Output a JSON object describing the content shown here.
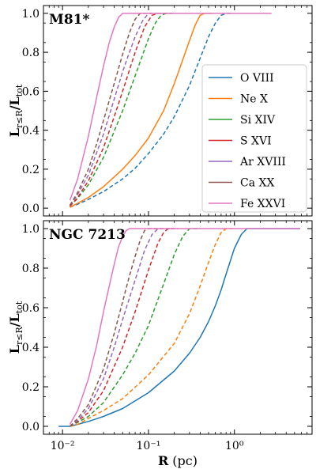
{
  "chart_data": {
    "type": "line",
    "x_scale": "log",
    "xlim": [
      0.006,
      8
    ],
    "ylim": [
      -0.04,
      1.04
    ],
    "x_ticks": [
      {
        "value": 0.01,
        "label": "10⁻²"
      },
      {
        "value": 0.1,
        "label": "10⁻¹"
      },
      {
        "value": 1,
        "label": "10⁰"
      }
    ],
    "y_ticks": [
      {
        "value": 0.0,
        "label": "0.0"
      },
      {
        "value": 0.2,
        "label": "0.2"
      },
      {
        "value": 0.4,
        "label": "0.4"
      },
      {
        "value": 0.6,
        "label": "0.6"
      },
      {
        "value": 0.8,
        "label": "0.8"
      },
      {
        "value": 1.0,
        "label": "1.0"
      }
    ],
    "xlabel": {
      "main": "R",
      "unit": "(pc)"
    },
    "ylabel": {
      "main": "L",
      "sub1": "r≤R",
      "sep": "/L",
      "sub2": "tot"
    },
    "legend": {
      "placement": "center-right",
      "entries": [
        {
          "label": "O VIII",
          "color": "#1f77b4"
        },
        {
          "label": "Ne X",
          "color": "#ff7f0e"
        },
        {
          "label": "Si XIV",
          "color": "#2ca02c"
        },
        {
          "label": "S XVI",
          "color": "#d62728"
        },
        {
          "label": "Ar XVIII",
          "color": "#9467bd"
        },
        {
          "label": "Ca XX",
          "color": "#8c564b"
        },
        {
          "label": "Fe XXVI",
          "color": "#e377c2"
        }
      ]
    },
    "panels": [
      {
        "name": "M81*",
        "series": [
          {
            "color": "#1f77b4",
            "dashed": true,
            "points": [
              [
                0.0122,
                0.005
              ],
              [
                0.015,
                0.02
              ],
              [
                0.02,
                0.045
              ],
              [
                0.03,
                0.085
              ],
              [
                0.05,
                0.15
              ],
              [
                0.07,
                0.205
              ],
              [
                0.1,
                0.28
              ],
              [
                0.15,
                0.38
              ],
              [
                0.2,
                0.47
              ],
              [
                0.3,
                0.63
              ],
              [
                0.4,
                0.77
              ],
              [
                0.5,
                0.88
              ],
              [
                0.6,
                0.95
              ],
              [
                0.7,
                0.99
              ],
              [
                0.8,
                1.0
              ],
              [
                0.95,
                1.0
              ]
            ]
          },
          {
            "color": "#ff7f0e",
            "dashed": false,
            "points": [
              [
                0.0122,
                0.005
              ],
              [
                0.015,
                0.025
              ],
              [
                0.02,
                0.055
              ],
              [
                0.03,
                0.11
              ],
              [
                0.05,
                0.2
              ],
              [
                0.07,
                0.27
              ],
              [
                0.1,
                0.36
              ],
              [
                0.15,
                0.5
              ],
              [
                0.2,
                0.64
              ],
              [
                0.25,
                0.76
              ],
              [
                0.3,
                0.86
              ],
              [
                0.35,
                0.94
              ],
              [
                0.4,
                0.99
              ],
              [
                0.45,
                1.0
              ],
              [
                0.55,
                1.0
              ]
            ]
          },
          {
            "color": "#2ca02c",
            "dashed": true,
            "points": [
              [
                0.0122,
                0.01
              ],
              [
                0.015,
                0.05
              ],
              [
                0.02,
                0.12
              ],
              [
                0.03,
                0.26
              ],
              [
                0.05,
                0.5
              ],
              [
                0.07,
                0.68
              ],
              [
                0.1,
                0.87
              ],
              [
                0.12,
                0.95
              ],
              [
                0.14,
                0.99
              ],
              [
                0.16,
                1.0
              ],
              [
                0.2,
                1.0
              ]
            ]
          },
          {
            "color": "#d62728",
            "dashed": true,
            "points": [
              [
                0.0122,
                0.01
              ],
              [
                0.015,
                0.055
              ],
              [
                0.02,
                0.14
              ],
              [
                0.03,
                0.31
              ],
              [
                0.04,
                0.47
              ],
              [
                0.05,
                0.6
              ],
              [
                0.07,
                0.8
              ],
              [
                0.09,
                0.93
              ],
              [
                0.11,
                0.99
              ],
              [
                0.13,
                1.0
              ],
              [
                0.18,
                1.0
              ]
            ]
          },
          {
            "color": "#9467bd",
            "dashed": true,
            "points": [
              [
                0.0122,
                0.015
              ],
              [
                0.015,
                0.07
              ],
              [
                0.02,
                0.17
              ],
              [
                0.03,
                0.38
              ],
              [
                0.04,
                0.56
              ],
              [
                0.05,
                0.7
              ],
              [
                0.06,
                0.8
              ],
              [
                0.07,
                0.88
              ],
              [
                0.085,
                0.96
              ],
              [
                0.1,
                1.0
              ],
              [
                0.14,
                1.0
              ]
            ]
          },
          {
            "color": "#8c564b",
            "dashed": true,
            "points": [
              [
                0.0122,
                0.015
              ],
              [
                0.015,
                0.08
              ],
              [
                0.02,
                0.2
              ],
              [
                0.025,
                0.33
              ],
              [
                0.03,
                0.45
              ],
              [
                0.04,
                0.64
              ],
              [
                0.05,
                0.79
              ],
              [
                0.06,
                0.9
              ],
              [
                0.07,
                0.97
              ],
              [
                0.08,
                1.0
              ],
              [
                0.11,
                1.0
              ]
            ]
          },
          {
            "color": "#e377c2",
            "dashed": false,
            "points": [
              [
                0.0122,
                0.04
              ],
              [
                0.015,
                0.15
              ],
              [
                0.02,
                0.37
              ],
              [
                0.025,
                0.57
              ],
              [
                0.03,
                0.73
              ],
              [
                0.035,
                0.85
              ],
              [
                0.04,
                0.93
              ],
              [
                0.045,
                0.98
              ],
              [
                0.05,
                1.0
              ],
              [
                0.06,
                1.0
              ],
              [
                0.08,
                1.0
              ],
              [
                0.1,
                1.0
              ],
              [
                0.2,
                1.0
              ],
              [
                0.5,
                1.0
              ],
              [
                1.0,
                1.0
              ],
              [
                2.0,
                1.0
              ],
              [
                2.7,
                1.0
              ]
            ]
          }
        ]
      },
      {
        "name": "NGC 7213",
        "series": [
          {
            "color": "#1f77b4",
            "dashed": false,
            "points": [
              [
                0.009,
                0.0
              ],
              [
                0.0122,
                0.0
              ],
              [
                0.015,
                0.01
              ],
              [
                0.02,
                0.025
              ],
              [
                0.03,
                0.05
              ],
              [
                0.05,
                0.09
              ],
              [
                0.1,
                0.17
              ],
              [
                0.2,
                0.28
              ],
              [
                0.3,
                0.37
              ],
              [
                0.4,
                0.45
              ],
              [
                0.5,
                0.53
              ],
              [
                0.6,
                0.61
              ],
              [
                0.7,
                0.69
              ],
              [
                0.8,
                0.77
              ],
              [
                1.0,
                0.9
              ],
              [
                1.2,
                0.97
              ],
              [
                1.4,
                1.0
              ],
              [
                2.0,
                1.0
              ],
              [
                4.0,
                1.0
              ],
              [
                5.8,
                1.0
              ]
            ]
          },
          {
            "color": "#ff7f0e",
            "dashed": true,
            "points": [
              [
                0.0122,
                0.0
              ],
              [
                0.015,
                0.01
              ],
              [
                0.02,
                0.04
              ],
              [
                0.03,
                0.08
              ],
              [
                0.05,
                0.14
              ],
              [
                0.1,
                0.26
              ],
              [
                0.2,
                0.42
              ],
              [
                0.3,
                0.57
              ],
              [
                0.4,
                0.71
              ],
              [
                0.5,
                0.83
              ],
              [
                0.6,
                0.92
              ],
              [
                0.7,
                0.98
              ],
              [
                0.8,
                1.0
              ],
              [
                1.0,
                1.0
              ]
            ]
          },
          {
            "color": "#2ca02c",
            "dashed": true,
            "points": [
              [
                0.0122,
                0.0
              ],
              [
                0.015,
                0.02
              ],
              [
                0.02,
                0.05
              ],
              [
                0.03,
                0.12
              ],
              [
                0.05,
                0.26
              ],
              [
                0.07,
                0.37
              ],
              [
                0.1,
                0.51
              ],
              [
                0.15,
                0.72
              ],
              [
                0.2,
                0.87
              ],
              [
                0.25,
                0.96
              ],
              [
                0.3,
                1.0
              ],
              [
                0.4,
                1.0
              ]
            ]
          },
          {
            "color": "#d62728",
            "dashed": true,
            "points": [
              [
                0.0122,
                0.0
              ],
              [
                0.015,
                0.025
              ],
              [
                0.02,
                0.07
              ],
              [
                0.03,
                0.18
              ],
              [
                0.05,
                0.4
              ],
              [
                0.07,
                0.58
              ],
              [
                0.1,
                0.79
              ],
              [
                0.13,
                0.93
              ],
              [
                0.15,
                0.98
              ],
              [
                0.17,
                1.0
              ],
              [
                0.22,
                1.0
              ]
            ]
          },
          {
            "color": "#9467bd",
            "dashed": true,
            "points": [
              [
                0.0122,
                0.0
              ],
              [
                0.015,
                0.03
              ],
              [
                0.02,
                0.09
              ],
              [
                0.03,
                0.24
              ],
              [
                0.04,
                0.4
              ],
              [
                0.05,
                0.54
              ],
              [
                0.07,
                0.74
              ],
              [
                0.09,
                0.89
              ],
              [
                0.11,
                0.97
              ],
              [
                0.13,
                1.0
              ],
              [
                0.18,
                1.0
              ]
            ]
          },
          {
            "color": "#8c564b",
            "dashed": true,
            "points": [
              [
                0.0122,
                0.0
              ],
              [
                0.015,
                0.04
              ],
              [
                0.02,
                0.11
              ],
              [
                0.03,
                0.29
              ],
              [
                0.04,
                0.47
              ],
              [
                0.05,
                0.63
              ],
              [
                0.06,
                0.76
              ],
              [
                0.07,
                0.86
              ],
              [
                0.08,
                0.94
              ],
              [
                0.09,
                0.99
              ],
              [
                0.1,
                1.0
              ],
              [
                0.14,
                1.0
              ]
            ]
          },
          {
            "color": "#e377c2",
            "dashed": false,
            "points": [
              [
                0.0122,
                0.01
              ],
              [
                0.015,
                0.08
              ],
              [
                0.02,
                0.24
              ],
              [
                0.025,
                0.41
              ],
              [
                0.03,
                0.58
              ],
              [
                0.035,
                0.71
              ],
              [
                0.04,
                0.82
              ],
              [
                0.045,
                0.91
              ],
              [
                0.05,
                0.96
              ],
              [
                0.055,
                0.99
              ],
              [
                0.06,
                1.0
              ],
              [
                0.08,
                1.0
              ],
              [
                0.1,
                1.0
              ],
              [
                0.2,
                1.0
              ],
              [
                0.5,
                1.0
              ],
              [
                1.0,
                1.0
              ],
              [
                2.0,
                1.0
              ],
              [
                4.0,
                1.0
              ],
              [
                5.8,
                1.0
              ]
            ]
          }
        ]
      }
    ]
  }
}
